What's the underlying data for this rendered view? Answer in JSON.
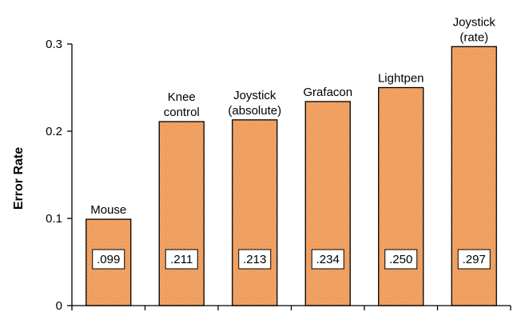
{
  "chart_data": {
    "type": "bar",
    "title": "",
    "xlabel": "",
    "ylabel": "Error Rate",
    "ylim": [
      0,
      0.3
    ],
    "yticks": [
      "0",
      "0.1",
      "0.2",
      "0.3"
    ],
    "ytick_values": [
      0,
      0.1,
      0.2,
      0.3
    ],
    "grid": false,
    "bar_color": "#f5a86a",
    "bar_pattern": "dotted",
    "categories": [
      [
        "Mouse"
      ],
      [
        "Knee",
        "control"
      ],
      [
        "Joystick",
        "(absolute)"
      ],
      [
        "Grafacon"
      ],
      [
        "Lightpen"
      ],
      [
        "Joystick",
        "(rate)"
      ]
    ],
    "values": [
      0.099,
      0.211,
      0.213,
      0.234,
      0.25,
      0.297
    ],
    "value_labels": [
      ".099",
      ".211",
      ".213",
      ".234",
      ".250",
      ".297"
    ]
  }
}
